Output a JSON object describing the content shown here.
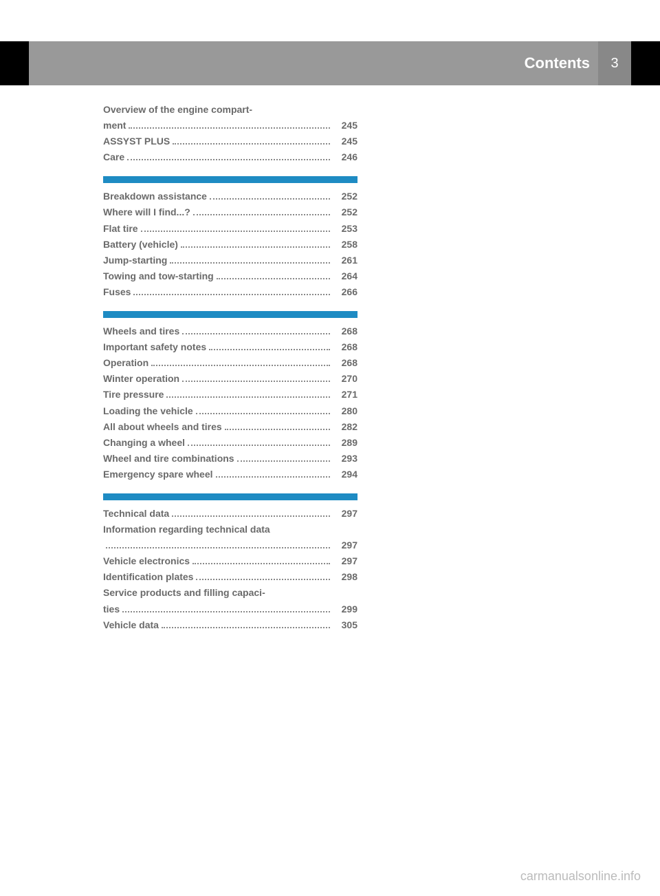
{
  "header": {
    "title": "Contents",
    "page_number": "3"
  },
  "sections": [
    {
      "entries": [
        {
          "label_top": "Overview of the engine compart-",
          "label": "ment",
          "page": "245"
        },
        {
          "label": "ASSYST PLUS",
          "page": "245"
        },
        {
          "label": "Care",
          "page": "246"
        }
      ]
    },
    {
      "entries": [
        {
          "label": "Breakdown assistance",
          "page": "252"
        },
        {
          "label": "Where will I find...?",
          "page": "252"
        },
        {
          "label": "Flat tire",
          "page": "253"
        },
        {
          "label": "Battery (vehicle)",
          "page": "258"
        },
        {
          "label": "Jump-starting",
          "page": "261"
        },
        {
          "label": "Towing and tow-starting",
          "page": "264"
        },
        {
          "label": "Fuses",
          "page": "266"
        }
      ]
    },
    {
      "entries": [
        {
          "label": "Wheels and tires",
          "page": "268"
        },
        {
          "label": "Important safety notes",
          "page": "268"
        },
        {
          "label": "Operation",
          "page": "268"
        },
        {
          "label": "Winter operation",
          "page": "270"
        },
        {
          "label": "Tire pressure",
          "page": "271"
        },
        {
          "label": "Loading the vehicle",
          "page": "280"
        },
        {
          "label": "All about wheels and tires",
          "page": "282"
        },
        {
          "label": "Changing a wheel",
          "page": "289"
        },
        {
          "label": "Wheel and tire combinations",
          "page": "293"
        },
        {
          "label": "Emergency spare wheel",
          "page": "294"
        }
      ]
    },
    {
      "entries": [
        {
          "label": "Technical data",
          "page": "297"
        },
        {
          "label_top": "Information regarding technical data",
          "label": "",
          "page": "297"
        },
        {
          "label": "Vehicle electronics",
          "page": "297"
        },
        {
          "label": "Identification plates",
          "page": "298"
        },
        {
          "label_top": "Service products and filling capaci-",
          "label": "ties",
          "page": "299"
        },
        {
          "label": "Vehicle data",
          "page": "305"
        }
      ]
    }
  ],
  "watermark": "carmanualsonline.info",
  "colors": {
    "divider": "#1e8bc3",
    "header_bg": "#999999",
    "text": "#6a6a6a",
    "watermark": "#bbbbbb"
  }
}
